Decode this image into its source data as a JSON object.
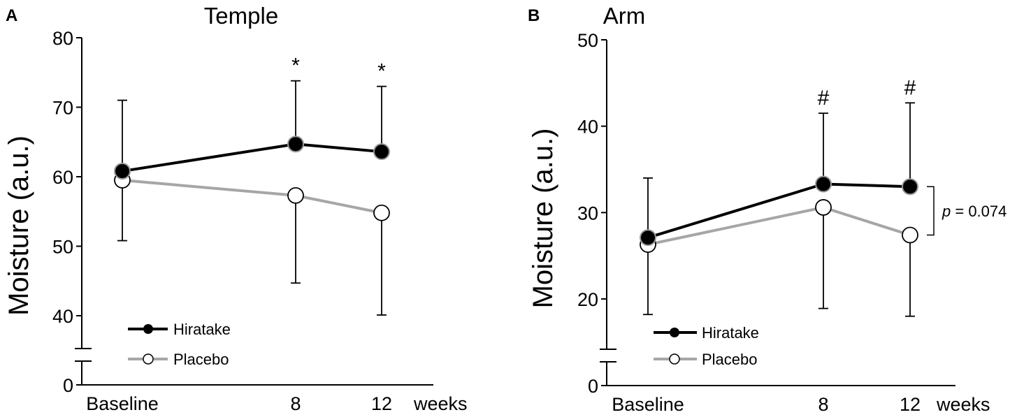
{
  "chart_data": [
    {
      "type": "line",
      "panel_label": "A",
      "title": "Temple",
      "ylabel": "Moisture (a.u.)",
      "xlabel": "weeks",
      "categories": [
        "Baseline",
        "8",
        "12"
      ],
      "yticks": [
        "0",
        "40",
        "50",
        "60",
        "70",
        "80"
      ],
      "ylim": [
        40,
        80
      ],
      "axis_break": true,
      "series": [
        {
          "name": "Hiratake",
          "values": [
            60.8,
            64.7,
            63.6
          ],
          "error_upper": [
            71.0,
            73.8,
            73.0
          ],
          "color": "#000000",
          "marker": "filled-circle"
        },
        {
          "name": "Placebo",
          "values": [
            59.5,
            57.3,
            54.8
          ],
          "error_lower": [
            50.8,
            44.7,
            40.1
          ],
          "color": "#a6a6a6",
          "marker": "open-circle"
        }
      ],
      "annotations": [
        {
          "category": "8",
          "text": "*"
        },
        {
          "category": "12",
          "text": "*"
        }
      ],
      "legend": "bottom-left"
    },
    {
      "type": "line",
      "panel_label": "B",
      "title": "Arm",
      "ylabel": "Moisture (a.u.)",
      "xlabel": "weeks",
      "categories": [
        "Baseline",
        "8",
        "12"
      ],
      "yticks": [
        "0",
        "20",
        "30",
        "40",
        "50"
      ],
      "ylim": [
        20,
        50
      ],
      "axis_break": true,
      "series": [
        {
          "name": "Hiratake",
          "values": [
            27.1,
            33.3,
            33.0
          ],
          "error_upper": [
            34.0,
            41.5,
            42.7
          ],
          "color": "#000000",
          "marker": "filled-circle"
        },
        {
          "name": "Placebo",
          "values": [
            26.3,
            30.6,
            27.4
          ],
          "error_lower": [
            18.2,
            18.9,
            18.0
          ],
          "color": "#a6a6a6",
          "marker": "open-circle"
        }
      ],
      "annotations": [
        {
          "category": "8",
          "text": "#"
        },
        {
          "category": "12",
          "text": "#"
        }
      ],
      "bracket": {
        "p_prefix": "p",
        "p_text": " = 0.074"
      },
      "legend": "bottom-left"
    }
  ]
}
